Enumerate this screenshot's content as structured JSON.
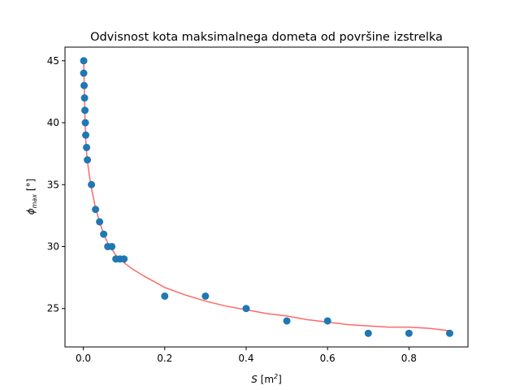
{
  "chart_data": {
    "type": "scatter",
    "title": "Odvisnost kota maksimalnega dometa od površine izstrelka",
    "xlabel_main": "S",
    "xlabel_unit": "[m",
    "xlabel_sup": "2",
    "xlabel_end": "]",
    "ylabel_symbol": "ϕ",
    "ylabel_sub": "max",
    "ylabel_unit": "[°]",
    "xlim": [
      -0.045,
      0.945
    ],
    "ylim": [
      21.9,
      46.1
    ],
    "xticks": [
      0.0,
      0.2,
      0.4,
      0.6,
      0.8
    ],
    "xtick_labels": [
      "0.0",
      "0.2",
      "0.4",
      "0.6",
      "0.8"
    ],
    "yticks": [
      25,
      30,
      35,
      40,
      45
    ],
    "ytick_labels": [
      "25",
      "30",
      "35",
      "40",
      "45"
    ],
    "grid": false,
    "series": [
      {
        "kind": "points",
        "color": "#1f77b4",
        "x": [
          0.001,
          0.001,
          0.002,
          0.003,
          0.004,
          0.005,
          0.006,
          0.008,
          0.01,
          0.02,
          0.03,
          0.04,
          0.05,
          0.06,
          0.07,
          0.08,
          0.09,
          0.1,
          0.2,
          0.3,
          0.4,
          0.5,
          0.6,
          0.7,
          0.8,
          0.9
        ],
        "y": [
          45,
          44,
          43,
          42,
          41,
          40,
          39,
          38,
          37,
          35,
          33,
          32,
          31,
          30,
          30,
          29,
          29,
          29,
          26,
          26,
          25,
          24,
          24,
          23,
          23,
          23
        ]
      },
      {
        "kind": "fit-line",
        "color": "#ff4d4d",
        "x": [
          0.001,
          0.002,
          0.003,
          0.004,
          0.005,
          0.006,
          0.008,
          0.01,
          0.015,
          0.02,
          0.03,
          0.04,
          0.05,
          0.06,
          0.07,
          0.08,
          0.1,
          0.12,
          0.15,
          0.2,
          0.25,
          0.3,
          0.35,
          0.4,
          0.45,
          0.5,
          0.55,
          0.6,
          0.65,
          0.7,
          0.75,
          0.8,
          0.85,
          0.9
        ],
        "y": [
          45.0,
          43.4,
          41.8,
          40.4,
          39.4,
          38.6,
          37.6,
          36.9,
          35.7,
          34.7,
          33.1,
          32.0,
          31.0,
          30.3,
          29.8,
          29.3,
          28.7,
          28.2,
          27.6,
          26.7,
          26.1,
          25.6,
          25.2,
          24.9,
          24.6,
          24.4,
          24.1,
          23.9,
          23.7,
          23.6,
          23.5,
          23.5,
          23.4,
          23.2
        ]
      }
    ]
  }
}
